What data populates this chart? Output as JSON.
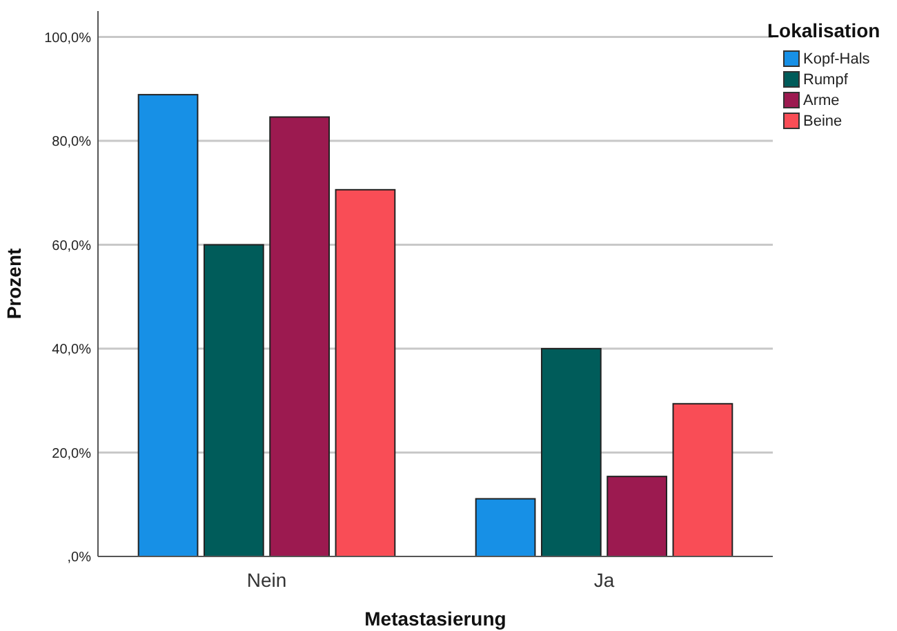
{
  "chart_data": {
    "type": "bar",
    "xlabel": "Metastasierung",
    "ylabel": "Prozent",
    "legend_title": "Lokalisation",
    "categories": [
      "Nein",
      "Ja"
    ],
    "series": [
      {
        "name": "Kopf-Hals",
        "color": "#1790e6",
        "values": [
          88.9,
          11.1
        ]
      },
      {
        "name": "Rumpf",
        "color": "#005c5a",
        "values": [
          60.0,
          40.0
        ]
      },
      {
        "name": "Arme",
        "color": "#9c1a50",
        "values": [
          84.6,
          15.4
        ]
      },
      {
        "name": "Beine",
        "color": "#f94d56",
        "values": [
          70.6,
          29.4
        ]
      }
    ],
    "ylim": [
      0,
      105
    ],
    "yticks": [
      {
        "value": 0,
        "label": ",0%"
      },
      {
        "value": 20,
        "label": "20,0%"
      },
      {
        "value": 40,
        "label": "40,0%"
      },
      {
        "value": 60,
        "label": "60,0%"
      },
      {
        "value": 80,
        "label": "80,0%"
      },
      {
        "value": 100,
        "label": "100,0%"
      }
    ],
    "grid": "y",
    "legend": "top right"
  }
}
